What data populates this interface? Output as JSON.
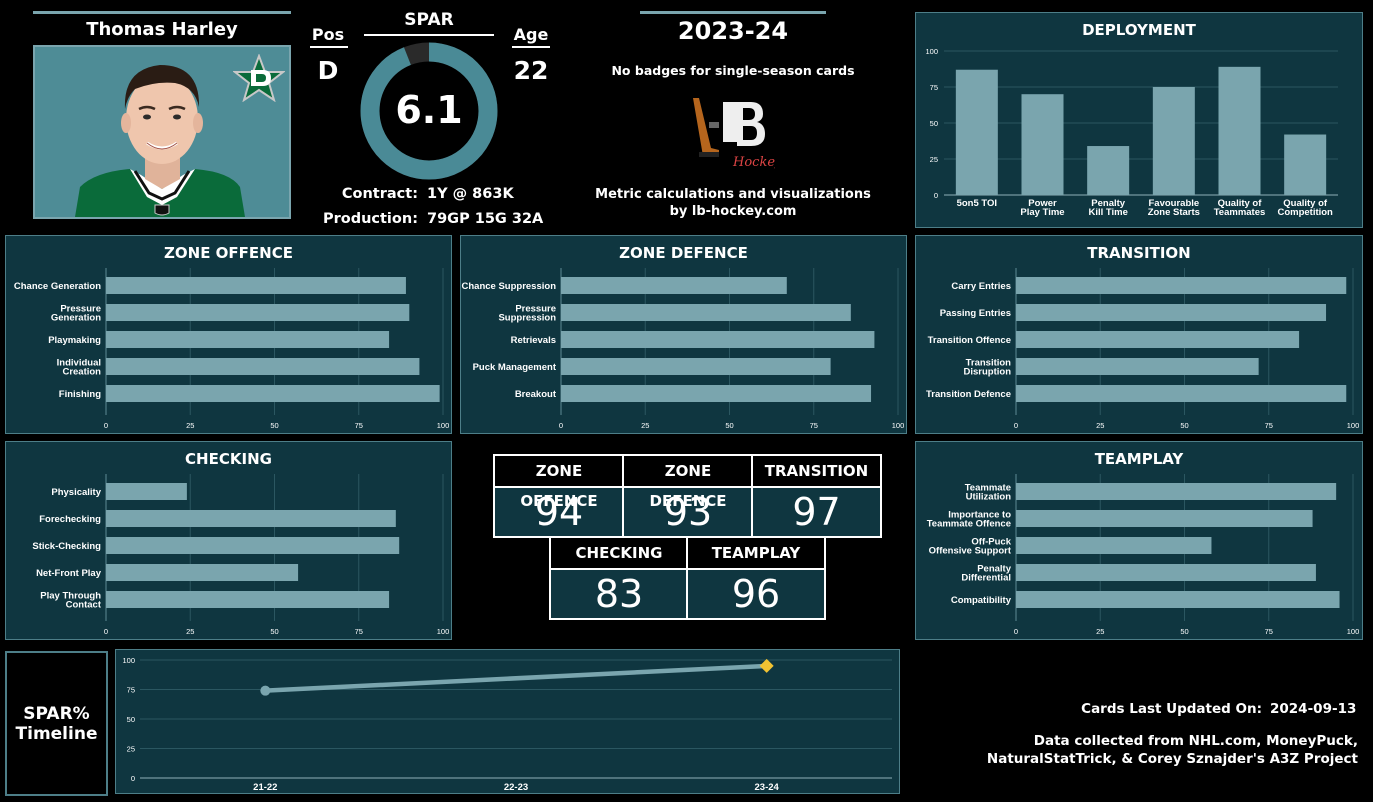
{
  "player": {
    "name": "Thomas Harley",
    "pos_label": "Pos",
    "pos": "D",
    "age_label": "Age",
    "age": "22",
    "spar_label": "SPAR",
    "spar": "6.1",
    "spar_fraction": 0.94,
    "contract_label": "Contract:",
    "contract": "1Y @ 863K",
    "production_label": "Production:",
    "production": "79GP 15G 32A"
  },
  "season": {
    "year": "2023-24",
    "badges": "No badges for single-season cards",
    "credit_line1": "Metric calculations and visualizations",
    "credit_line2": "by lb-hockey.com",
    "logo_text": "Hockey"
  },
  "colors": {
    "panel": "#0f3640",
    "bar": "#7aa5ae",
    "ring": "#4a8a96",
    "ring_gap": "#2a2a2a",
    "timeline_current": "#f1c232",
    "team_green": "#0a6b3a"
  },
  "chart_data": [
    {
      "type": "bar",
      "title": "DEPLOYMENT",
      "categories": [
        "5on5 TOI",
        "Power Play Time",
        "Penalty Kill Time",
        "Favourable Zone Starts",
        "Quality of Teammates",
        "Quality of Competition"
      ],
      "values": [
        87,
        70,
        34,
        75,
        89,
        42
      ],
      "ylim": [
        0,
        100
      ],
      "yticks": [
        "0",
        "25",
        "50",
        "75",
        "100"
      ]
    },
    {
      "type": "bar",
      "orientation": "horizontal",
      "title": "ZONE OFFENCE",
      "categories": [
        "Chance Generation",
        "Pressure Generation",
        "Playmaking",
        "Individual Creation",
        "Finishing"
      ],
      "values": [
        89,
        90,
        84,
        93,
        99
      ],
      "xlim": [
        0,
        100
      ],
      "xticks": [
        "0",
        "25",
        "50",
        "75",
        "100"
      ]
    },
    {
      "type": "bar",
      "orientation": "horizontal",
      "title": "ZONE DEFENCE",
      "categories": [
        "Chance Suppression",
        "Pressure Suppression",
        "Retrievals",
        "Puck Management",
        "Breakout"
      ],
      "values": [
        67,
        86,
        93,
        80,
        92
      ],
      "xlim": [
        0,
        100
      ],
      "xticks": [
        "0",
        "25",
        "50",
        "75",
        "100"
      ]
    },
    {
      "type": "bar",
      "orientation": "horizontal",
      "title": "TRANSITION",
      "categories": [
        "Carry Entries",
        "Passing Entries",
        "Transition Offence",
        "Transition Disruption",
        "Transition Defence"
      ],
      "values": [
        98,
        92,
        84,
        72,
        98
      ],
      "xlim": [
        0,
        100
      ],
      "xticks": [
        "0",
        "25",
        "50",
        "75",
        "100"
      ]
    },
    {
      "type": "bar",
      "orientation": "horizontal",
      "title": "CHECKING",
      "categories": [
        "Physicality",
        "Forechecking",
        "Stick-Checking",
        "Net-Front Play",
        "Play Through Contact"
      ],
      "values": [
        24,
        86,
        87,
        57,
        84
      ],
      "xlim": [
        0,
        100
      ],
      "xticks": [
        "0",
        "25",
        "50",
        "75",
        "100"
      ]
    },
    {
      "type": "bar",
      "orientation": "horizontal",
      "title": "TEAMPLAY",
      "categories": [
        "Teammate Utilization",
        "Importance to Teammate Offence",
        "Off-Puck Offensive Support",
        "Penalty Differential",
        "Compatibility"
      ],
      "values": [
        95,
        88,
        58,
        89,
        96
      ],
      "xlim": [
        0,
        100
      ],
      "xticks": [
        "0",
        "25",
        "50",
        "75",
        "100"
      ]
    },
    {
      "type": "line",
      "title": "SPAR% Timeline",
      "x": [
        "21-22",
        "22-23",
        "23-24"
      ],
      "y": [
        74,
        null,
        95
      ],
      "ylim": [
        0,
        100
      ],
      "yticks": [
        "0",
        "25",
        "50",
        "75",
        "100"
      ]
    }
  ],
  "scores": {
    "zone_offence": {
      "label": "ZONE OFFENCE",
      "value": "94"
    },
    "zone_defence": {
      "label": "ZONE DEFENCE",
      "value": "93"
    },
    "transition": {
      "label": "TRANSITION",
      "value": "97"
    },
    "checking": {
      "label": "CHECKING",
      "value": "83"
    },
    "teamplay": {
      "label": "TEAMPLAY",
      "value": "96"
    }
  },
  "timeline": {
    "line1": "SPAR%",
    "line2": "Timeline"
  },
  "footer": {
    "updated_label": "Cards Last Updated On:",
    "updated_date": "2024-09-13",
    "data_line1": "Data collected from NHL.com, MoneyPuck,",
    "data_line2": "NaturalStatTrick, & Corey Sznajder's A3Z Project"
  }
}
